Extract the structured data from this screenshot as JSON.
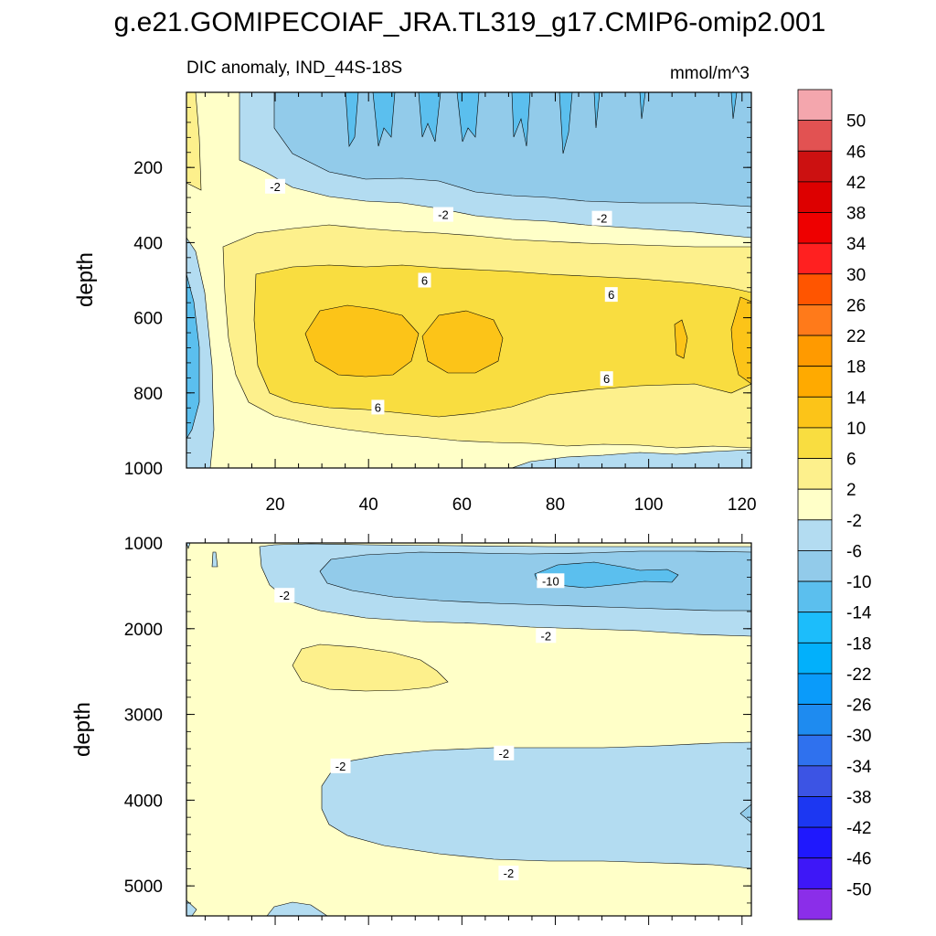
{
  "chart_data": {
    "type": "contour",
    "title": "g.e21.GOMIPECOIAF_JRA.TL319_g17.CMIP6-omip2.001",
    "colorbar": {
      "levels": [
        "50",
        "46",
        "42",
        "38",
        "34",
        "30",
        "26",
        "22",
        "18",
        "14",
        "10",
        "6",
        "2",
        "-2",
        "-6",
        "-10",
        "-14",
        "-18",
        "-22",
        "-26",
        "-30",
        "-34",
        "-38",
        "-42",
        "-46",
        "-50"
      ],
      "colors": [
        "#f4a6ad",
        "#e25252",
        "#cc1111",
        "#dd0000",
        "#ee0000",
        "#ff2020",
        "#ff5500",
        "#ff7a1a",
        "#ff9a00",
        "#ffaa00",
        "#fcc418",
        "#f9dd40",
        "#fdf08c",
        "#ffffc8",
        "#b3dcf1",
        "#92cbea",
        "#5bbfee",
        "#1cbdfb",
        "#02b0fb",
        "#0a9bfa",
        "#1e8bf0",
        "#2f71ee",
        "#3c54e4",
        "#1c37f2",
        "#1f18fd",
        "#3e17f7",
        "#8b2ee9"
      ]
    },
    "panels": [
      {
        "id": "upper",
        "subtitle": "DIC anomaly, IND_44S-18S",
        "units": "mmol/m^3",
        "ylabel": "depth",
        "xlim": [
          1,
          122
        ],
        "ylim": [
          1000,
          0
        ],
        "xticks": [
          20,
          40,
          60,
          80,
          100,
          120
        ],
        "yticks": [
          200,
          400,
          600,
          800,
          1000
        ],
        "contour_labels": [
          {
            "text": "-2",
            "x": 20,
            "y": 250
          },
          {
            "text": "-2",
            "x": 56,
            "y": 325
          },
          {
            "text": "-2",
            "x": 90,
            "y": 335
          },
          {
            "text": "6",
            "x": 52,
            "y": 500
          },
          {
            "text": "6",
            "x": 92,
            "y": 538
          },
          {
            "text": "6",
            "x": 91,
            "y": 762
          },
          {
            "text": "6",
            "x": 42,
            "y": 838
          }
        ]
      },
      {
        "id": "lower",
        "ylabel": "depth",
        "xlim": [
          1,
          122
        ],
        "ylim": [
          5350,
          1000
        ],
        "yticks": [
          1000,
          2000,
          3000,
          4000,
          5000
        ],
        "contour_labels": [
          {
            "text": "-2",
            "x": 22,
            "y": 1610
          },
          {
            "text": "-10",
            "x": 79,
            "y": 1440
          },
          {
            "text": "-2",
            "x": 78,
            "y": 2080
          },
          {
            "text": "-2",
            "x": 69,
            "y": 3450
          },
          {
            "text": "-2",
            "x": 34,
            "y": 3600
          },
          {
            "text": "-2",
            "x": 70,
            "y": 4850
          }
        ]
      }
    ]
  }
}
